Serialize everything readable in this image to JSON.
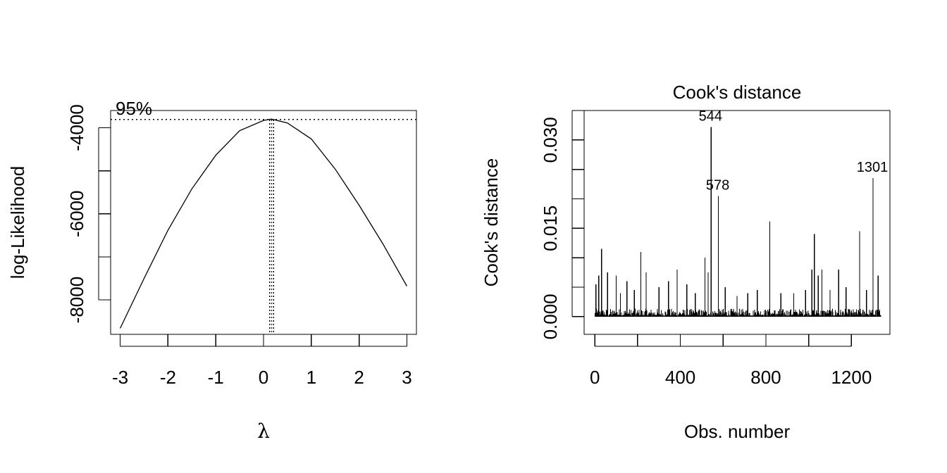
{
  "chart_data": [
    {
      "type": "line",
      "title": "",
      "xlabel": "λ",
      "ylabel": "log-Likelihood",
      "xlim": [
        -3.2,
        3.2
      ],
      "ylim": [
        -8800,
        -3600
      ],
      "x_ticks": [
        -3,
        -2,
        -1,
        0,
        1,
        2,
        3
      ],
      "x_tick_labels": [
        "-3",
        "-2",
        "-1",
        "0",
        "1",
        "2",
        "3"
      ],
      "y_ticks": [
        -8000,
        -6000,
        -4000
      ],
      "y_tick_labels": [
        "-8000",
        "-6000",
        "-4000"
      ],
      "ci_label": "95%",
      "ci_loglik": -3810,
      "lambda_ci": [
        0.13,
        0.21
      ],
      "series": [
        {
          "x": [
            -3.0,
            -2.5,
            -2.0,
            -1.5,
            -1.0,
            -0.5,
            0.0,
            0.17,
            0.5,
            1.0,
            1.5,
            2.0,
            2.5,
            3.0
          ],
          "y": [
            -8660,
            -7500,
            -6380,
            -5420,
            -4640,
            -4070,
            -3830,
            -3800,
            -3890,
            -4260,
            -4960,
            -5800,
            -6700,
            -7680
          ]
        }
      ]
    },
    {
      "type": "bar",
      "title": "Cook's distance",
      "xlabel": "Obs. number",
      "ylabel": "Cook's distance",
      "xlim": [
        -50,
        1380
      ],
      "ylim": [
        -0.003,
        0.035
      ],
      "x_ticks": [
        0,
        400,
        800,
        1200
      ],
      "x_tick_labels": [
        "0",
        "400",
        "800",
        "1200"
      ],
      "x_minor_ticks": [
        200,
        600,
        1000
      ],
      "y_ticks": [
        0.0,
        0.005,
        0.01,
        0.015,
        0.02,
        0.025,
        0.03,
        0.035
      ],
      "y_tick_labels": [
        "0.000",
        "",
        "",
        "0.015",
        "",
        "",
        "0.030",
        ""
      ],
      "n_obs": 1338,
      "baseline_noise_max": 0.0012,
      "spikes": [
        {
          "x": 544,
          "value": 0.0322,
          "label": "544"
        },
        {
          "x": 578,
          "value": 0.0205,
          "label": "578"
        },
        {
          "x": 1301,
          "value": 0.0235,
          "label": "1301"
        },
        {
          "x": 5,
          "value": 0.0055,
          "label": ""
        },
        {
          "x": 18,
          "value": 0.007,
          "label": ""
        },
        {
          "x": 32,
          "value": 0.0115,
          "label": ""
        },
        {
          "x": 60,
          "value": 0.0075,
          "label": ""
        },
        {
          "x": 100,
          "value": 0.007,
          "label": ""
        },
        {
          "x": 120,
          "value": 0.004,
          "label": ""
        },
        {
          "x": 150,
          "value": 0.006,
          "label": ""
        },
        {
          "x": 185,
          "value": 0.0045,
          "label": ""
        },
        {
          "x": 215,
          "value": 0.011,
          "label": ""
        },
        {
          "x": 240,
          "value": 0.0075,
          "label": ""
        },
        {
          "x": 300,
          "value": 0.005,
          "label": ""
        },
        {
          "x": 345,
          "value": 0.006,
          "label": ""
        },
        {
          "x": 385,
          "value": 0.008,
          "label": ""
        },
        {
          "x": 430,
          "value": 0.0055,
          "label": ""
        },
        {
          "x": 470,
          "value": 0.004,
          "label": ""
        },
        {
          "x": 515,
          "value": 0.01,
          "label": ""
        },
        {
          "x": 530,
          "value": 0.0075,
          "label": ""
        },
        {
          "x": 610,
          "value": 0.005,
          "label": ""
        },
        {
          "x": 665,
          "value": 0.0035,
          "label": ""
        },
        {
          "x": 715,
          "value": 0.004,
          "label": ""
        },
        {
          "x": 760,
          "value": 0.0045,
          "label": ""
        },
        {
          "x": 818,
          "value": 0.0162,
          "label": ""
        },
        {
          "x": 870,
          "value": 0.004,
          "label": ""
        },
        {
          "x": 930,
          "value": 0.004,
          "label": ""
        },
        {
          "x": 985,
          "value": 0.0045,
          "label": ""
        },
        {
          "x": 1015,
          "value": 0.008,
          "label": ""
        },
        {
          "x": 1027,
          "value": 0.014,
          "label": ""
        },
        {
          "x": 1045,
          "value": 0.007,
          "label": ""
        },
        {
          "x": 1062,
          "value": 0.008,
          "label": ""
        },
        {
          "x": 1100,
          "value": 0.0045,
          "label": ""
        },
        {
          "x": 1140,
          "value": 0.008,
          "label": ""
        },
        {
          "x": 1175,
          "value": 0.005,
          "label": ""
        },
        {
          "x": 1238,
          "value": 0.0145,
          "label": ""
        },
        {
          "x": 1270,
          "value": 0.0045,
          "label": ""
        },
        {
          "x": 1325,
          "value": 0.007,
          "label": ""
        }
      ]
    }
  ]
}
